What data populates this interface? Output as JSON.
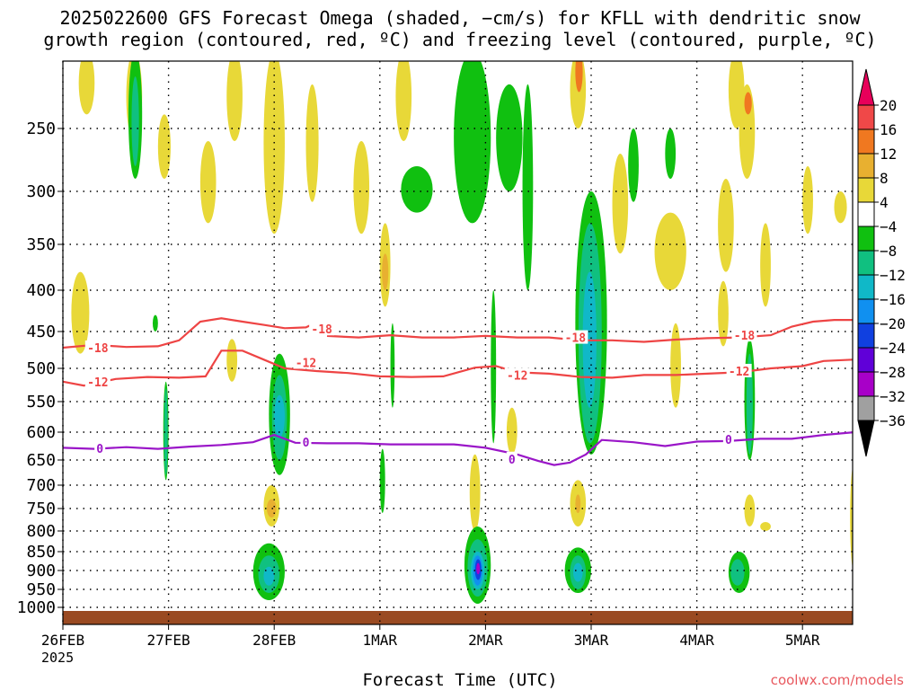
{
  "title_line1": "2025022600 GFS Forecast Omega (shaded, −cm/s) for KFLL with dendritic snow",
  "title_line2": "growth region (contoured, red, ºC) and freezing level (contoured, purple, ºC)",
  "xlabel": "Forecast Time (UTC)",
  "year_label": "2025",
  "credit": "coolwx.com/models",
  "chart_data": {
    "type": "heatmap",
    "title": "2025022600 GFS Forecast Omega (shaded, −cm/s) for KFLL with dendritic snow growth region (contoured, red, ºC) and freezing level (contoured, purple, ºC)",
    "xlabel": "Forecast Time (UTC)",
    "ylabel": "",
    "x_range_days": [
      0,
      7.5
    ],
    "x_ticks": [
      {
        "label": "26FEB",
        "day": 0
      },
      {
        "label": "27FEB",
        "day": 1
      },
      {
        "label": "28FEB",
        "day": 2
      },
      {
        "label": "1MAR",
        "day": 3
      },
      {
        "label": "2MAR",
        "day": 4
      },
      {
        "label": "3MAR",
        "day": 5
      },
      {
        "label": "4MAR",
        "day": 6
      },
      {
        "label": "5MAR",
        "day": 7
      }
    ],
    "y_ticks_hpa": [
      250,
      300,
      350,
      400,
      450,
      500,
      550,
      600,
      650,
      700,
      750,
      800,
      850,
      900,
      950,
      1000
    ],
    "y_range_hpa": [
      200,
      1030
    ],
    "y_scale": "log-pressure (reversed)",
    "grid": true,
    "colorbar": {
      "levels": [
        "20",
        "16",
        "12",
        "8",
        "4",
        "−4",
        "−8",
        "−12",
        "−16",
        "−20",
        "−24",
        "−28",
        "−32",
        "−36"
      ],
      "colors": [
        "#e8005a",
        "#f04848",
        "#f07820",
        "#e8b030",
        "#e8d838",
        "#ffffff",
        "#10c010",
        "#10c080",
        "#10b8c8",
        "#1090f0",
        "#1040e0",
        "#6000d8",
        "#a800c8",
        "#a0a0a0",
        "#000000"
      ]
    },
    "contours": [
      {
        "name": "-18",
        "color": "#ee4444",
        "points": [
          [
            0,
            472
          ],
          [
            0.3,
            468
          ],
          [
            0.6,
            471
          ],
          [
            0.9,
            470
          ],
          [
            1.1,
            462
          ],
          [
            1.3,
            438
          ],
          [
            1.5,
            434
          ],
          [
            1.7,
            438
          ],
          [
            1.9,
            442
          ],
          [
            2.1,
            446
          ],
          [
            2.3,
            445
          ],
          [
            2.35,
            442
          ]
        ]
      },
      {
        "name": "-18",
        "color": "#ee4444",
        "points": [
          [
            2.5,
            456
          ],
          [
            2.8,
            458
          ],
          [
            3.1,
            455
          ],
          [
            3.4,
            458
          ],
          [
            3.7,
            458
          ],
          [
            4.0,
            456
          ],
          [
            4.3,
            458
          ],
          [
            4.6,
            458
          ],
          [
            4.9,
            462
          ],
          [
            5.2,
            462
          ],
          [
            5.5,
            464
          ],
          [
            5.8,
            461
          ],
          [
            6.1,
            459
          ],
          [
            6.4,
            458
          ],
          [
            6.7,
            455
          ],
          [
            6.9,
            444
          ],
          [
            7.1,
            438
          ],
          [
            7.3,
            436
          ],
          [
            7.5,
            436
          ]
        ]
      },
      {
        "name": "-12",
        "color": "#ee4444",
        "points": [
          [
            0,
            520
          ],
          [
            0.2,
            526
          ],
          [
            0.5,
            516
          ],
          [
            0.8,
            513
          ],
          [
            1.1,
            514
          ],
          [
            1.35,
            512
          ],
          [
            1.5,
            476
          ],
          [
            1.7,
            476
          ],
          [
            1.9,
            488
          ],
          [
            2.1,
            500
          ],
          [
            2.4,
            504
          ],
          [
            2.7,
            507
          ],
          [
            3.0,
            512
          ],
          [
            3.3,
            513
          ],
          [
            3.6,
            512
          ],
          [
            3.9,
            499
          ],
          [
            4.1,
            497
          ],
          [
            4.3,
            506
          ],
          [
            4.6,
            508
          ],
          [
            4.9,
            513
          ],
          [
            5.2,
            514
          ],
          [
            5.5,
            510
          ],
          [
            5.8,
            510
          ],
          [
            6.1,
            508
          ],
          [
            6.4,
            506
          ],
          [
            6.7,
            500
          ],
          [
            7.0,
            497
          ],
          [
            7.2,
            490
          ],
          [
            7.5,
            488
          ]
        ]
      },
      {
        "name": "0",
        "color": "#9a16c8",
        "points": [
          [
            0,
            628
          ],
          [
            0.3,
            630
          ],
          [
            0.6,
            627
          ],
          [
            0.9,
            630
          ],
          [
            1.2,
            626
          ],
          [
            1.5,
            623
          ],
          [
            1.8,
            618
          ],
          [
            2.0,
            605
          ],
          [
            2.2,
            619
          ],
          [
            2.5,
            620
          ],
          [
            2.8,
            620
          ],
          [
            3.1,
            622
          ],
          [
            3.4,
            622
          ],
          [
            3.7,
            622
          ],
          [
            4.0,
            628
          ],
          [
            4.3,
            640
          ],
          [
            4.5,
            652
          ],
          [
            4.65,
            660
          ],
          [
            4.8,
            655
          ],
          [
            4.95,
            640
          ],
          [
            5.1,
            614
          ],
          [
            5.4,
            618
          ],
          [
            5.7,
            625
          ],
          [
            6.0,
            617
          ],
          [
            6.3,
            616
          ],
          [
            6.6,
            612
          ],
          [
            6.9,
            612
          ],
          [
            7.2,
            605
          ],
          [
            7.5,
            600
          ]
        ]
      }
    ],
    "contour_labels": [
      {
        "text": "-18",
        "day": 0.33,
        "hpa": 472,
        "color": "#ee4444"
      },
      {
        "text": "-18",
        "day": 2.45,
        "hpa": 447,
        "color": "#ee4444"
      },
      {
        "text": "-18",
        "day": 4.85,
        "hpa": 458,
        "color": "#ee4444"
      },
      {
        "text": "-18",
        "day": 6.45,
        "hpa": 455,
        "color": "#ee4444"
      },
      {
        "text": "-12",
        "day": 0.33,
        "hpa": 520,
        "color": "#ee4444"
      },
      {
        "text": "-12",
        "day": 2.3,
        "hpa": 492,
        "color": "#ee4444"
      },
      {
        "text": "-12",
        "day": 4.3,
        "hpa": 510,
        "color": "#ee4444"
      },
      {
        "text": "-12",
        "day": 6.4,
        "hpa": 504,
        "color": "#ee4444"
      },
      {
        "text": "0",
        "day": 0.35,
        "hpa": 629,
        "color": "#9a16c8"
      },
      {
        "text": "0",
        "day": 2.3,
        "hpa": 618,
        "color": "#9a16c8"
      },
      {
        "text": "0",
        "day": 4.25,
        "hpa": 648,
        "color": "#9a16c8"
      },
      {
        "text": "0",
        "day": 6.3,
        "hpa": 613,
        "color": "#9a16c8"
      }
    ],
    "shaded_cells": [
      {
        "level": "4",
        "day0": 0.15,
        "day1": 0.3,
        "p0": 200,
        "p1": 240
      },
      {
        "level": "4",
        "day0": 0.08,
        "day1": 0.25,
        "p0": 380,
        "p1": 480
      },
      {
        "level": "4",
        "day0": 0.6,
        "day1": 0.75,
        "p0": 200,
        "p1": 260
      },
      {
        "level": "-4",
        "day0": 0.62,
        "day1": 0.75,
        "p0": 200,
        "p1": 290
      },
      {
        "level": "-8",
        "day0": 0.65,
        "day1": 0.72,
        "p0": 215,
        "p1": 280
      },
      {
        "level": "4",
        "day0": 0.9,
        "day1": 1.02,
        "p0": 240,
        "p1": 290
      },
      {
        "level": "-4",
        "day0": 0.85,
        "day1": 0.9,
        "p0": 430,
        "p1": 450
      },
      {
        "level": "-4",
        "day0": 0.95,
        "day1": 1.0,
        "p0": 520,
        "p1": 690
      },
      {
        "level": "-8",
        "day0": 0.96,
        "day1": 0.99,
        "p0": 530,
        "p1": 680
      },
      {
        "level": "4",
        "day0": 1.3,
        "day1": 1.45,
        "p0": 260,
        "p1": 330
      },
      {
        "level": "4",
        "day0": 1.55,
        "day1": 1.7,
        "p0": 200,
        "p1": 260
      },
      {
        "level": "4",
        "day0": 1.55,
        "day1": 1.65,
        "p0": 460,
        "p1": 520
      },
      {
        "level": "4",
        "day0": 1.9,
        "day1": 2.1,
        "p0": 200,
        "p1": 340
      },
      {
        "level": "-4",
        "day0": 1.95,
        "day1": 2.15,
        "p0": 480,
        "p1": 680
      },
      {
        "level": "-8",
        "day0": 1.98,
        "day1": 2.12,
        "p0": 510,
        "p1": 650
      },
      {
        "level": "-12",
        "day0": 2.0,
        "day1": 2.1,
        "p0": 540,
        "p1": 610
      },
      {
        "level": "4",
        "day0": 1.9,
        "day1": 2.05,
        "p0": 700,
        "p1": 790
      },
      {
        "level": "8",
        "day0": 1.93,
        "day1": 2.02,
        "p0": 730,
        "p1": 770
      },
      {
        "level": "-4",
        "day0": 1.8,
        "day1": 2.1,
        "p0": 830,
        "p1": 980
      },
      {
        "level": "-8",
        "day0": 1.85,
        "day1": 2.05,
        "p0": 860,
        "p1": 960
      },
      {
        "level": "-12",
        "day0": 1.9,
        "day1": 2.0,
        "p0": 890,
        "p1": 940
      },
      {
        "level": "4",
        "day0": 2.3,
        "day1": 2.42,
        "p0": 220,
        "p1": 310
      },
      {
        "level": "4",
        "day0": 2.75,
        "day1": 2.9,
        "p0": 260,
        "p1": 340
      },
      {
        "level": "4",
        "day0": 3.0,
        "day1": 3.1,
        "p0": 330,
        "p1": 420
      },
      {
        "level": "8",
        "day0": 3.02,
        "day1": 3.08,
        "p0": 360,
        "p1": 400
      },
      {
        "level": "-4",
        "day0": 3.1,
        "day1": 3.14,
        "p0": 440,
        "p1": 560
      },
      {
        "level": "-4",
        "day0": 3.0,
        "day1": 3.05,
        "p0": 630,
        "p1": 760
      },
      {
        "level": "4",
        "day0": 3.15,
        "day1": 3.3,
        "p0": 200,
        "p1": 260
      },
      {
        "level": "-4",
        "day0": 3.7,
        "day1": 4.05,
        "p0": 200,
        "p1": 330
      },
      {
        "level": "-4",
        "day0": 3.2,
        "day1": 3.5,
        "p0": 280,
        "p1": 320
      },
      {
        "level": "4",
        "day0": 3.85,
        "day1": 3.95,
        "p0": 640,
        "p1": 800
      },
      {
        "level": "-4",
        "day0": 3.8,
        "day1": 4.05,
        "p0": 790,
        "p1": 990
      },
      {
        "level": "-8",
        "day0": 3.83,
        "day1": 4.02,
        "p0": 820,
        "p1": 970
      },
      {
        "level": "-12",
        "day0": 3.86,
        "day1": 3.99,
        "p0": 850,
        "p1": 950
      },
      {
        "level": "-16",
        "day0": 3.88,
        "day1": 3.97,
        "p0": 860,
        "p1": 940
      },
      {
        "level": "-20",
        "day0": 3.9,
        "day1": 3.96,
        "p0": 870,
        "p1": 925
      },
      {
        "level": "-28",
        "day0": 3.915,
        "day1": 3.945,
        "p0": 880,
        "p1": 910
      },
      {
        "level": "-4",
        "day0": 4.1,
        "day1": 4.35,
        "p0": 220,
        "p1": 300
      },
      {
        "level": "-4",
        "day0": 4.05,
        "day1": 4.1,
        "p0": 400,
        "p1": 620
      },
      {
        "level": "4",
        "day0": 4.2,
        "day1": 4.3,
        "p0": 560,
        "p1": 640
      },
      {
        "level": "-4",
        "day0": 4.35,
        "day1": 4.45,
        "p0": 220,
        "p1": 400
      },
      {
        "level": "4",
        "day0": 4.8,
        "day1": 4.95,
        "p0": 200,
        "p1": 250
      },
      {
        "level": "12",
        "day0": 4.85,
        "day1": 4.92,
        "p0": 200,
        "p1": 225
      },
      {
        "level": "-4",
        "day0": 4.85,
        "day1": 5.15,
        "p0": 300,
        "p1": 640
      },
      {
        "level": "-8",
        "day0": 4.88,
        "day1": 5.1,
        "p0": 330,
        "p1": 620
      },
      {
        "level": "-12",
        "day0": 4.92,
        "day1": 5.05,
        "p0": 380,
        "p1": 560
      },
      {
        "level": "4",
        "day0": 4.8,
        "day1": 4.95,
        "p0": 690,
        "p1": 790
      },
      {
        "level": "8",
        "day0": 4.85,
        "day1": 4.9,
        "p0": 720,
        "p1": 760
      },
      {
        "level": "-4",
        "day0": 4.75,
        "day1": 5.0,
        "p0": 840,
        "p1": 960
      },
      {
        "level": "-8",
        "day0": 4.8,
        "day1": 4.95,
        "p0": 860,
        "p1": 950
      },
      {
        "level": "-12",
        "day0": 4.83,
        "day1": 4.92,
        "p0": 880,
        "p1": 930
      },
      {
        "level": "4",
        "day0": 5.2,
        "day1": 5.35,
        "p0": 270,
        "p1": 360
      },
      {
        "level": "-4",
        "day0": 5.35,
        "day1": 5.45,
        "p0": 250,
        "p1": 310
      },
      {
        "level": "4",
        "day0": 5.6,
        "day1": 5.9,
        "p0": 320,
        "p1": 400
      },
      {
        "level": "4",
        "day0": 5.75,
        "day1": 5.85,
        "p0": 440,
        "p1": 560
      },
      {
        "level": "-4",
        "day0": 5.7,
        "day1": 5.8,
        "p0": 250,
        "p1": 290
      },
      {
        "level": "4",
        "day0": 6.2,
        "day1": 6.35,
        "p0": 290,
        "p1": 380
      },
      {
        "level": "4",
        "day0": 6.2,
        "day1": 6.3,
        "p0": 390,
        "p1": 470
      },
      {
        "level": "4",
        "day0": 6.3,
        "day1": 6.45,
        "p0": 200,
        "p1": 250
      },
      {
        "level": "4",
        "day0": 6.4,
        "day1": 6.55,
        "p0": 220,
        "p1": 290
      },
      {
        "level": "12",
        "day0": 6.45,
        "day1": 6.52,
        "p0": 225,
        "p1": 240
      },
      {
        "level": "4",
        "day0": 6.6,
        "day1": 6.7,
        "p0": 330,
        "p1": 420
      },
      {
        "level": "-4",
        "day0": 6.45,
        "day1": 6.55,
        "p0": 460,
        "p1": 650
      },
      {
        "level": "-8",
        "day0": 6.47,
        "day1": 6.53,
        "p0": 480,
        "p1": 640
      },
      {
        "level": "4",
        "day0": 6.45,
        "day1": 6.55,
        "p0": 720,
        "p1": 790
      },
      {
        "level": "-4",
        "day0": 6.3,
        "day1": 6.5,
        "p0": 850,
        "p1": 960
      },
      {
        "level": "-8",
        "day0": 6.32,
        "day1": 6.45,
        "p0": 870,
        "p1": 940
      },
      {
        "level": "4",
        "day0": 6.6,
        "day1": 6.7,
        "p0": 780,
        "p1": 800
      },
      {
        "level": "4",
        "day0": 7.0,
        "day1": 7.1,
        "p0": 280,
        "p1": 340
      },
      {
        "level": "4",
        "day0": 7.3,
        "day1": 7.42,
        "p0": 300,
        "p1": 330
      },
      {
        "level": "4",
        "day0": 7.45,
        "day1": 7.52,
        "p0": 660,
        "p1": 900
      }
    ]
  }
}
